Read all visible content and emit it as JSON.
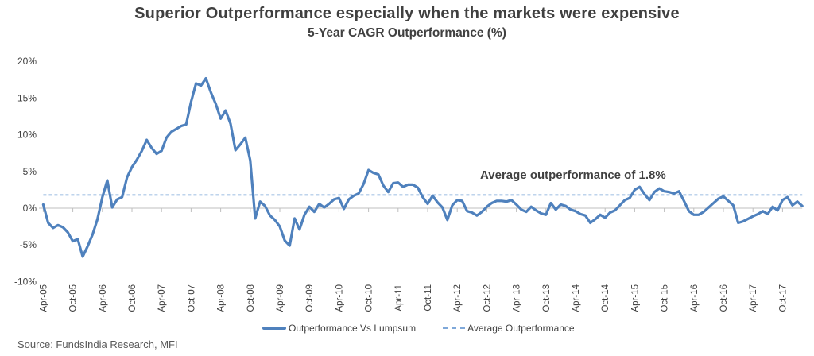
{
  "header": {
    "title": "Superior Outperformance especially when the markets were expensive",
    "subtitle": "5-Year CAGR Outperformance (%)"
  },
  "annotation": {
    "text": "Average outperformance of 1.8%"
  },
  "legend": {
    "series_label": "Outperformance Vs Lumpsum",
    "average_label": "Average Outperformance"
  },
  "source": {
    "text": "Source: FundsIndia Research, MFI"
  },
  "colors": {
    "line": "#4F81BD",
    "average_line": "#7FA8D9",
    "axis": "#BFBFBF",
    "label_text": "#404040",
    "source_text": "#595959"
  },
  "chart_data": {
    "type": "line",
    "title": "Superior Outperformance especially when the markets were expensive",
    "subtitle": "5-Year CAGR Outperformance (%)",
    "xlabel": "",
    "ylabel": "",
    "ylim": [
      -10,
      20
    ],
    "y_ticks": [
      20,
      15,
      10,
      5,
      0,
      -5,
      -10
    ],
    "y_tick_suffix": "%",
    "grid": false,
    "legend_position": "bottom",
    "x_is_monthly_from": "Apr-05",
    "x_tick_every": 6,
    "x_tick_labels": [
      "Apr-05",
      "Oct-05",
      "Apr-06",
      "Oct-06",
      "Apr-07",
      "Oct-07",
      "Apr-08",
      "Oct-08",
      "Apr-09",
      "Oct-09",
      "Apr-10",
      "Oct-10",
      "Apr-11",
      "Oct-11",
      "Apr-12",
      "Oct-12",
      "Apr-13",
      "Oct-13",
      "Apr-14",
      "Oct-14",
      "Apr-15",
      "Oct-15",
      "Apr-16",
      "Oct-16",
      "Apr-17",
      "Oct-17"
    ],
    "average_line_value": 1.8,
    "annotation": "Average outperformance of 1.8%",
    "series": [
      {
        "name": "Outperformance Vs Lumpsum",
        "values": [
          0.5,
          -2.0,
          -2.7,
          -2.3,
          -2.6,
          -3.3,
          -4.5,
          -4.2,
          -6.6,
          -5.2,
          -3.6,
          -1.5,
          1.5,
          3.8,
          0.1,
          1.2,
          1.5,
          4.2,
          5.6,
          6.6,
          7.8,
          9.3,
          8.2,
          7.4,
          7.8,
          9.6,
          10.4,
          10.8,
          11.2,
          11.4,
          14.5,
          17.0,
          16.7,
          17.7,
          15.8,
          14.2,
          12.2,
          13.3,
          11.5,
          7.9,
          8.7,
          9.6,
          6.5,
          -1.4,
          0.9,
          0.3,
          -1.0,
          -1.6,
          -2.5,
          -4.4,
          -5.1,
          -1.4,
          -2.9,
          -0.9,
          0.2,
          -0.5,
          0.6,
          0.1,
          0.6,
          1.2,
          1.4,
          -0.1,
          1.2,
          1.7,
          2.0,
          3.3,
          5.2,
          4.8,
          4.6,
          3.1,
          2.2,
          3.4,
          3.5,
          2.9,
          3.2,
          3.2,
          2.8,
          1.5,
          0.6,
          1.7,
          0.8,
          0.1,
          -1.6,
          0.4,
          1.1,
          1.0,
          -0.4,
          -0.6,
          -1.0,
          -0.5,
          0.2,
          0.7,
          1.0,
          1.0,
          0.9,
          1.1,
          0.5,
          -0.2,
          -0.5,
          0.2,
          -0.3,
          -0.7,
          -0.9,
          0.7,
          -0.2,
          0.5,
          0.3,
          -0.2,
          -0.4,
          -0.8,
          -1.0,
          -2.0,
          -1.5,
          -0.9,
          -1.3,
          -0.6,
          -0.3,
          0.4,
          1.1,
          1.4,
          2.5,
          2.9,
          1.9,
          1.1,
          2.2,
          2.7,
          2.3,
          2.2,
          2.0,
          2.3,
          1.0,
          -0.4,
          -0.9,
          -0.9,
          -0.5,
          0.1,
          0.7,
          1.3,
          1.6,
          1.0,
          0.4,
          -2.0,
          -1.8,
          -1.45,
          -1.1,
          -0.8,
          -0.4,
          -0.8,
          0.2,
          -0.3,
          1.1,
          1.5,
          0.4,
          0.9,
          0.3
        ]
      },
      {
        "name": "Average Outperformance",
        "constant_value": 1.8
      }
    ]
  }
}
